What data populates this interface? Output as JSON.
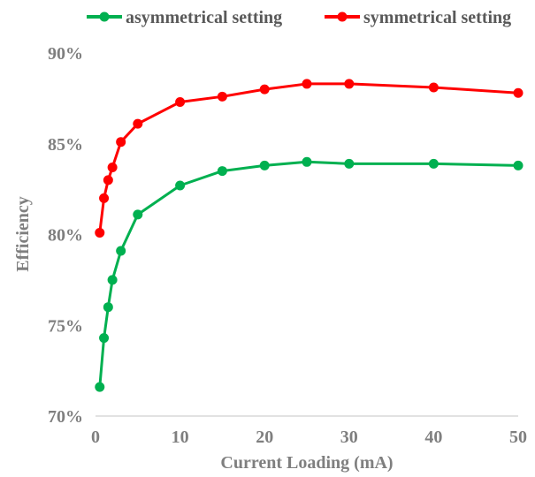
{
  "chart_data": {
    "type": "line",
    "title": "",
    "xlabel": "Current Loading (mA)",
    "ylabel": "Efficiency",
    "xlim": [
      0,
      50
    ],
    "ylim": [
      0.7,
      0.9
    ],
    "x_ticks": [
      0,
      10,
      20,
      30,
      40,
      50
    ],
    "x_tick_labels": [
      "0",
      "10",
      "20",
      "30",
      "40",
      "50"
    ],
    "y_ticks": [
      0.7,
      0.75,
      0.8,
      0.85,
      0.9
    ],
    "y_tick_labels": [
      "70%",
      "75%",
      "80%",
      "85%",
      "90%"
    ],
    "grid": false,
    "legend_position": "top",
    "series": [
      {
        "name": "asymmetrical setting",
        "color": "#00b050",
        "x": [
          0.5,
          1,
          1.5,
          2,
          3,
          5,
          10,
          15,
          20,
          25,
          30,
          40,
          50
        ],
        "y": [
          0.716,
          0.743,
          0.76,
          0.775,
          0.791,
          0.811,
          0.827,
          0.835,
          0.838,
          0.84,
          0.839,
          0.839,
          0.838
        ]
      },
      {
        "name": "symmetrical setting",
        "color": "#ff0000",
        "x": [
          0.5,
          1,
          1.5,
          2,
          3,
          5,
          10,
          15,
          20,
          25,
          30,
          40,
          50
        ],
        "y": [
          0.801,
          0.82,
          0.83,
          0.837,
          0.851,
          0.861,
          0.873,
          0.876,
          0.88,
          0.883,
          0.883,
          0.881,
          0.878
        ]
      }
    ]
  }
}
